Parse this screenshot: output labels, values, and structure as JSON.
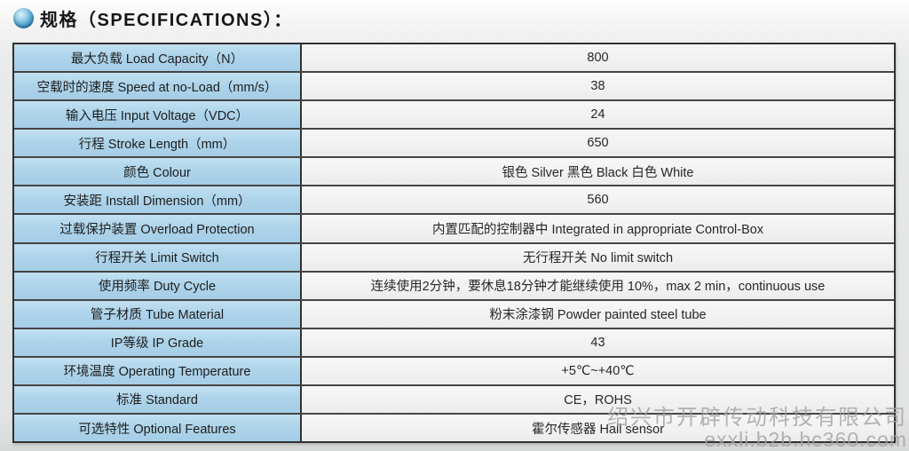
{
  "header": {
    "title": "规格（SPECIFICATIONS）：",
    "icon": "sphere-bullet-icon"
  },
  "table": {
    "rows": [
      {
        "label": "最大负载 Load Capacity（N）",
        "value": "800"
      },
      {
        "label": "空载时的速度 Speed at no-Load（mm/s）",
        "value": "38"
      },
      {
        "label": "输入电压 Input Voltage（VDC）",
        "value": "24"
      },
      {
        "label": "行程 Stroke Length（mm）",
        "value": "650"
      },
      {
        "label": "颜色 Colour",
        "value": "银色 Silver 黑色 Black 白色 White"
      },
      {
        "label": "安装距 Install Dimension（mm）",
        "value": "560"
      },
      {
        "label": "过载保护装置 Overload Protection",
        "value": "内置匹配的控制器中 Integrated in appropriate Control-Box"
      },
      {
        "label": "行程开关 Limit Switch",
        "value": "无行程开关 No limit switch"
      },
      {
        "label": "使用频率 Duty Cycle",
        "value": "连续使用2分钟，要休息18分钟才能继续使用 10%，max 2 min，continuous use"
      },
      {
        "label": "管子材质 Tube Material",
        "value": "粉末涂漆钢 Powder painted steel tube"
      },
      {
        "label": "IP等级 IP Grade",
        "value": "43"
      },
      {
        "label": "环境温度 Operating Temperature",
        "value": "+5℃~+40℃"
      },
      {
        "label": "标准 Standard",
        "value": "CE，ROHS"
      },
      {
        "label": "可选特性 Optional Features",
        "value": "霍尔传感器 Hall sensor"
      }
    ]
  },
  "watermark": {
    "company": "绍兴市开辟传动科技有限公司",
    "url": "exxli.b2b.hc360.com"
  },
  "colors": {
    "label_cell_bg": "#aed4ea",
    "value_cell_bg": "#f2f2f2",
    "table_border": "#323232",
    "sphere_accent": "#2d7cab",
    "watermark_gray": "#a2a2a2"
  }
}
